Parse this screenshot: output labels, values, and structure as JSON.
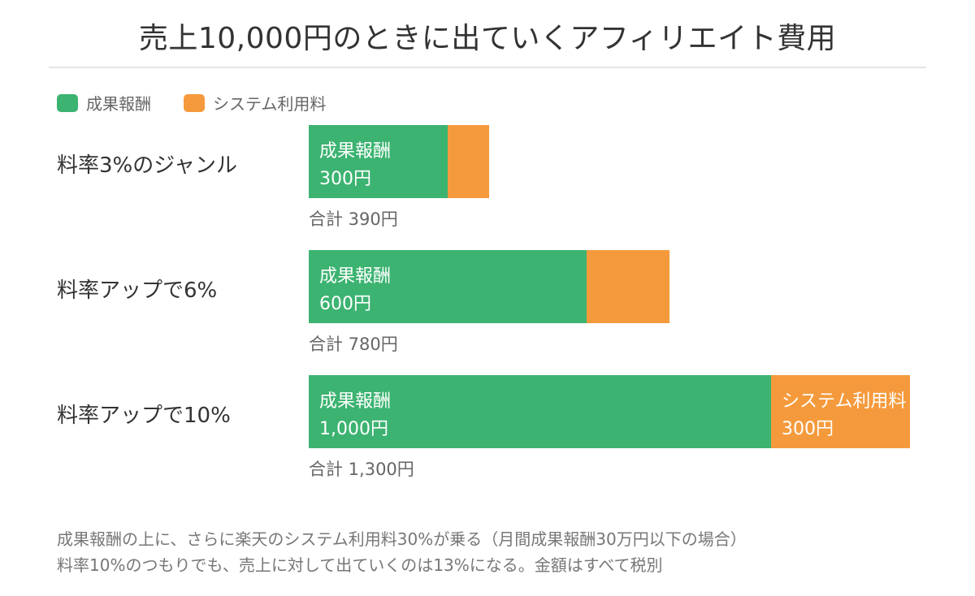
{
  "colors": {
    "commission": "#3cb371",
    "system_fee": "#f59a3c"
  },
  "chart_data": {
    "type": "bar",
    "orientation": "horizontal",
    "stacked": true,
    "title": "売上10,000円のときに出ていくアフィリエイト費用",
    "legend": [
      "成果報酬",
      "システム利用料"
    ],
    "legend_position": "top-left",
    "categories": [
      "料率3%のジャンル",
      "料率アップで6%",
      "料率アップで10%"
    ],
    "series": [
      {
        "name": "成果報酬",
        "values": [
          300,
          600,
          1000
        ]
      },
      {
        "name": "システム利用料",
        "values": [
          90,
          180,
          300
        ]
      }
    ],
    "segment_labels": [
      [
        {
          "name": "成果報酬",
          "value": "300円"
        },
        null
      ],
      [
        {
          "name": "成果報酬",
          "value": "600円"
        },
        null
      ],
      [
        {
          "name": "成果報酬",
          "value": "1,000円"
        },
        {
          "name": "システム利用料",
          "value": "300円"
        }
      ]
    ],
    "totals": [
      "合計 390円",
      "合計 780円",
      "合計 1,300円"
    ],
    "xlim": [
      0,
      1300
    ]
  },
  "notes": [
    "成果報酬の上に、さらに楽天のシステム利用料30%が乗る（月間成果報酬30万円以下の場合）",
    "料率10%のつもりでも、売上に対して出ていくのは13%になる。金額はすべて税別"
  ]
}
